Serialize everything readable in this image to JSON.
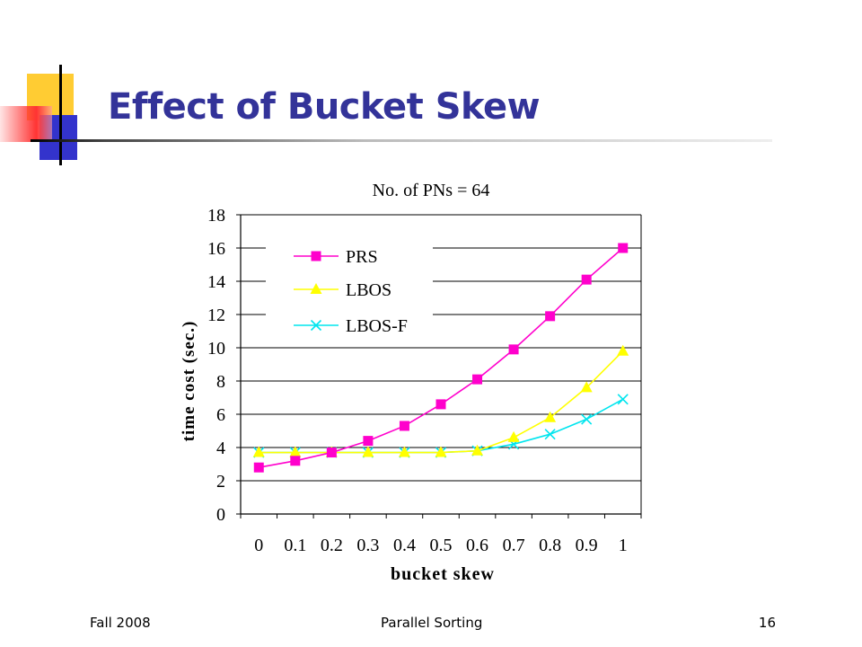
{
  "slide": {
    "title": "Effect of Bucket Skew",
    "footer_left": "Fall 2008",
    "footer_center": "Parallel Sorting",
    "page_number": "16",
    "colors": {
      "title": "#333399",
      "accent_yellow": "#FFCC33",
      "accent_blue": "#3333CC",
      "accent_red": "#FF3333"
    }
  },
  "chart_data": {
    "type": "line",
    "title": "No. of PNs = 64",
    "xlabel": "bucket skew",
    "ylabel": "time cost (sec.)",
    "x_ticks": [
      "0",
      "0.1",
      "0.2",
      "0.3",
      "0.4",
      "0.5",
      "0.6",
      "0.7",
      "0.8",
      "0.9",
      "1"
    ],
    "y_ticks": [
      "0",
      "2",
      "4",
      "6",
      "8",
      "10",
      "12",
      "14",
      "16",
      "18"
    ],
    "ylim": [
      0,
      18
    ],
    "grid": "horizontal",
    "legend_position": "top-left",
    "x": [
      0,
      0.1,
      0.2,
      0.3,
      0.4,
      0.5,
      0.6,
      0.7,
      0.8,
      0.9,
      1
    ],
    "series": [
      {
        "name": "PRS",
        "color": "#FF00CC",
        "marker": "square",
        "values": [
          2.8,
          3.2,
          3.7,
          4.4,
          5.3,
          6.6,
          8.1,
          9.9,
          11.9,
          14.1,
          16.0
        ]
      },
      {
        "name": "LBOS",
        "color": "#FFFF00",
        "marker": "triangle",
        "values": [
          3.7,
          3.7,
          3.7,
          3.7,
          3.7,
          3.7,
          3.8,
          4.6,
          5.8,
          7.6,
          9.8
        ]
      },
      {
        "name": "LBOS-F",
        "color": "#00E5EE",
        "marker": "x",
        "values": [
          3.7,
          3.7,
          3.7,
          3.7,
          3.7,
          3.7,
          3.8,
          4.2,
          4.8,
          5.7,
          6.9
        ]
      }
    ]
  }
}
